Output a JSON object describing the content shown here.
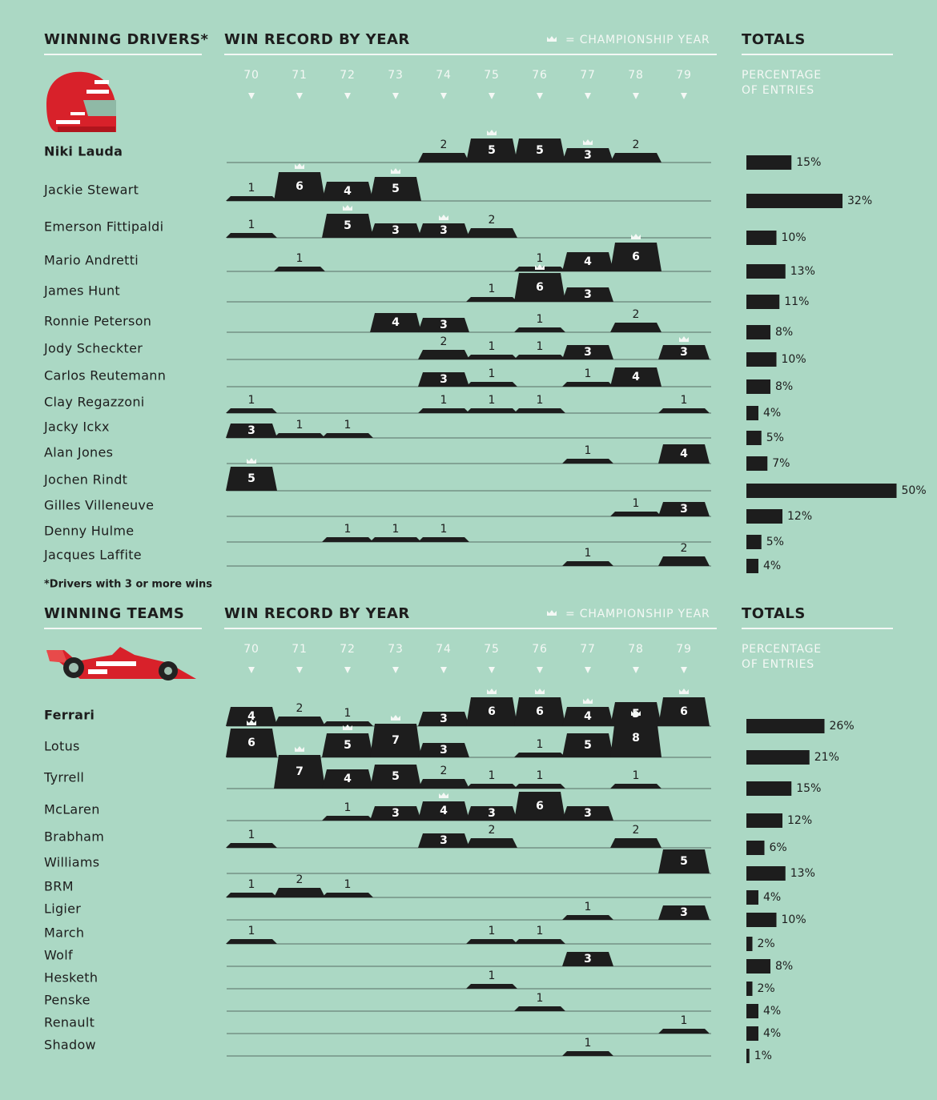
{
  "chart_data": [
    {
      "type": "win-record",
      "section_title": "WINNING DRIVERS*",
      "title": "WIN RECORD BY YEAR",
      "legend": "= CHAMPIONSHIP YEAR",
      "totals_title": "TOTALS",
      "totals_subtitle": [
        "PERCENTAGE",
        "OF ENTRIES"
      ],
      "footnote": "*Drivers with 3 or more wins",
      "categories": [
        70,
        71,
        72,
        73,
        74,
        75,
        76,
        77,
        78,
        79
      ],
      "series": [
        {
          "name": "Niki Lauda",
          "values": [
            null,
            null,
            null,
            null,
            2,
            5,
            5,
            3,
            2,
            null
          ],
          "championships": [
            75,
            77
          ],
          "total": 15,
          "total_label": "15%"
        },
        {
          "name": "Jackie Stewart",
          "values": [
            1,
            6,
            4,
            5,
            null,
            null,
            null,
            null,
            null,
            null
          ],
          "championships": [
            71,
            73
          ],
          "total": 32,
          "total_label": "32%"
        },
        {
          "name": "Emerson Fittipaldi",
          "values": [
            1,
            null,
            5,
            3,
            3,
            2,
            null,
            null,
            null,
            null
          ],
          "championships": [
            72,
            74
          ],
          "total": 10,
          "total_label": "10%"
        },
        {
          "name": "Mario Andretti",
          "values": [
            null,
            1,
            null,
            null,
            null,
            null,
            1,
            4,
            6,
            null
          ],
          "championships": [
            78
          ],
          "total": 13,
          "total_label": "13%"
        },
        {
          "name": "James Hunt",
          "values": [
            null,
            null,
            null,
            null,
            null,
            1,
            6,
            3,
            null,
            null
          ],
          "championships": [
            76
          ],
          "total": 11,
          "total_label": "11%"
        },
        {
          "name": "Ronnie Peterson",
          "values": [
            null,
            null,
            null,
            4,
            3,
            null,
            1,
            null,
            2,
            null
          ],
          "championships": [],
          "total": 8,
          "total_label": "8%"
        },
        {
          "name": "Jody Scheckter",
          "values": [
            null,
            null,
            null,
            null,
            2,
            1,
            1,
            3,
            null,
            3
          ],
          "championships": [
            79
          ],
          "total": 10,
          "total_label": "10%"
        },
        {
          "name": "Carlos Reutemann",
          "values": [
            null,
            null,
            null,
            null,
            3,
            1,
            null,
            1,
            4,
            null
          ],
          "championships": [],
          "total": 8,
          "total_label": "8%"
        },
        {
          "name": "Clay Regazzoni",
          "values": [
            1,
            null,
            null,
            null,
            1,
            1,
            1,
            null,
            null,
            1
          ],
          "championships": [],
          "total": 4,
          "total_label": "4%"
        },
        {
          "name": "Jacky Ickx",
          "values": [
            3,
            1,
            1,
            null,
            null,
            null,
            null,
            null,
            null,
            null
          ],
          "championships": [],
          "total": 5,
          "total_label": "5%"
        },
        {
          "name": "Alan Jones",
          "values": [
            null,
            null,
            null,
            null,
            null,
            null,
            null,
            1,
            null,
            4
          ],
          "championships": [],
          "total": 7,
          "total_label": "7%"
        },
        {
          "name": "Jochen Rindt",
          "values": [
            5,
            null,
            null,
            null,
            null,
            null,
            null,
            null,
            null,
            null
          ],
          "championships": [
            70
          ],
          "total": 50,
          "total_label": "50%"
        },
        {
          "name": "Gilles Villeneuve",
          "values": [
            null,
            null,
            null,
            null,
            null,
            null,
            null,
            null,
            1,
            3
          ],
          "championships": [],
          "total": 12,
          "total_label": "12%"
        },
        {
          "name": "Denny Hulme",
          "values": [
            null,
            null,
            1,
            1,
            1,
            null,
            null,
            null,
            null,
            null
          ],
          "championships": [],
          "total": 5,
          "total_label": "5%"
        },
        {
          "name": "Jacques Laffite",
          "values": [
            null,
            null,
            null,
            null,
            null,
            null,
            null,
            1,
            null,
            2
          ],
          "championships": [],
          "total": 4,
          "total_label": "4%"
        }
      ]
    },
    {
      "type": "win-record",
      "section_title": "WINNING TEAMS",
      "title": "WIN RECORD BY YEAR",
      "legend": "= CHAMPIONSHIP YEAR",
      "totals_title": "TOTALS",
      "totals_subtitle": [
        "PERCENTAGE",
        "OF ENTRIES"
      ],
      "categories": [
        70,
        71,
        72,
        73,
        74,
        75,
        76,
        77,
        78,
        79
      ],
      "series": [
        {
          "name": "Ferrari",
          "values": [
            4,
            2,
            1,
            null,
            3,
            6,
            6,
            4,
            5,
            6
          ],
          "championships": [
            75,
            76,
            77,
            79
          ],
          "total": 26,
          "total_label": "26%"
        },
        {
          "name": "Lotus",
          "values": [
            6,
            null,
            5,
            7,
            3,
            null,
            1,
            5,
            8,
            null
          ],
          "championships": [
            70,
            72,
            73,
            78
          ],
          "total": 21,
          "total_label": "21%"
        },
        {
          "name": "Tyrrell",
          "values": [
            null,
            7,
            4,
            5,
            2,
            1,
            1,
            null,
            1,
            null
          ],
          "championships": [
            71
          ],
          "total": 15,
          "total_label": "15%"
        },
        {
          "name": "McLaren",
          "values": [
            null,
            null,
            1,
            3,
            4,
            3,
            6,
            3,
            null,
            null
          ],
          "championships": [
            74
          ],
          "total": 12,
          "total_label": "12%"
        },
        {
          "name": "Brabham",
          "values": [
            1,
            null,
            null,
            null,
            3,
            2,
            null,
            null,
            2,
            null
          ],
          "championships": [],
          "total": 6,
          "total_label": "6%"
        },
        {
          "name": "Williams",
          "values": [
            null,
            null,
            null,
            null,
            null,
            null,
            null,
            null,
            null,
            5
          ],
          "championships": [],
          "total": 13,
          "total_label": "13%"
        },
        {
          "name": "BRM",
          "values": [
            1,
            2,
            1,
            null,
            null,
            null,
            null,
            null,
            null,
            null
          ],
          "championships": [],
          "total": 4,
          "total_label": "4%"
        },
        {
          "name": "Ligier",
          "values": [
            null,
            null,
            null,
            null,
            null,
            null,
            null,
            1,
            null,
            3
          ],
          "championships": [],
          "total": 10,
          "total_label": "10%"
        },
        {
          "name": "March",
          "values": [
            1,
            null,
            null,
            null,
            null,
            1,
            1,
            null,
            null,
            null
          ],
          "championships": [],
          "total": 2,
          "total_label": "2%"
        },
        {
          "name": "Wolf",
          "values": [
            null,
            null,
            null,
            null,
            null,
            null,
            null,
            3,
            null,
            null
          ],
          "championships": [],
          "total": 8,
          "total_label": "8%"
        },
        {
          "name": "Hesketh",
          "values": [
            null,
            null,
            null,
            null,
            null,
            1,
            null,
            null,
            null,
            null
          ],
          "championships": [],
          "total": 2,
          "total_label": "2%"
        },
        {
          "name": "Penske",
          "values": [
            null,
            null,
            null,
            null,
            null,
            null,
            1,
            null,
            null,
            null
          ],
          "championships": [],
          "total": 4,
          "total_label": "4%"
        },
        {
          "name": "Renault",
          "values": [
            null,
            null,
            null,
            null,
            null,
            null,
            null,
            null,
            null,
            1
          ],
          "championships": [],
          "total": 4,
          "total_label": "4%"
        },
        {
          "name": "Shadow",
          "values": [
            null,
            null,
            null,
            null,
            null,
            null,
            null,
            1,
            null,
            null
          ],
          "championships": [],
          "total": 1,
          "total_label": "1%"
        }
      ]
    }
  ]
}
